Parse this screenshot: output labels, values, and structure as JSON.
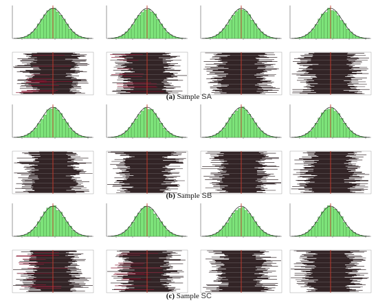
{
  "figure": {
    "colors": {
      "histogram_fill": "#7de37a",
      "histogram_outline": "#2f6b2a",
      "density_curve": "#1c1c1c",
      "center_line": "#c0392b",
      "trace_ink": "#150608",
      "trace_background": "#ffffff"
    },
    "sections": [
      {
        "label": "(a)",
        "word": "Sample",
        "code": "SA"
      },
      {
        "label": "(b)",
        "word": "Sample",
        "code": "SB"
      },
      {
        "label": "(c)",
        "word": "Sample",
        "code": "SC"
      }
    ]
  }
}
